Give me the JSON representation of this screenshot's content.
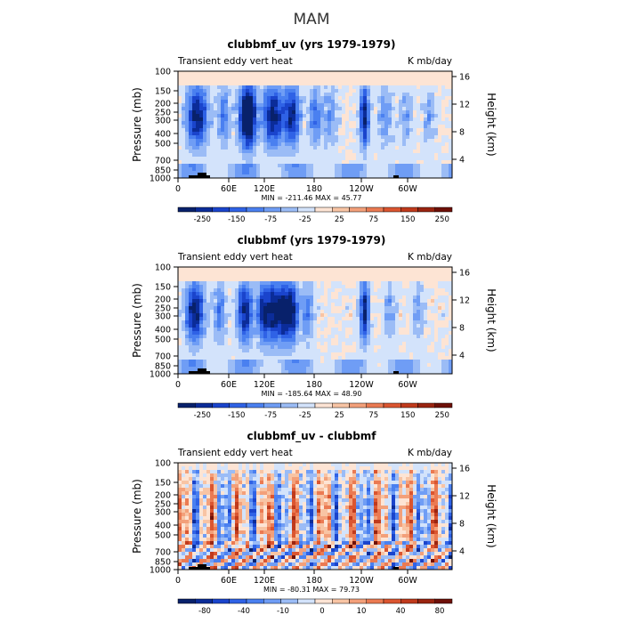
{
  "figure": {
    "title": "MAM"
  },
  "chart_data": [
    {
      "type": "heatmap",
      "title": "clubbmf_uv (yrs 1979-1979)",
      "left_label": "Transient eddy vert heat",
      "right_label": "K mb/day",
      "ylabel": "Pressure (mb)",
      "ylabel_right": "Height (km)",
      "x_ticks": [
        "0",
        "60E",
        "120E",
        "180",
        "120W",
        "60W"
      ],
      "y_ticks": [
        "100",
        "150",
        "200",
        "250",
        "300",
        "400",
        "500",
        "700",
        "850",
        "1000"
      ],
      "y_ticks_right": [
        "4",
        "8",
        "12",
        "16"
      ],
      "stats": "MIN = -211.46   MAX =  45.77",
      "colorbar_labels": [
        "-250",
        "-150",
        "-75",
        "-25",
        "25",
        "75",
        "150",
        "250"
      ],
      "colors": [
        "#08216b",
        "#0b2c99",
        "#1a44cc",
        "#2f62e6",
        "#4a80f0",
        "#6f9df5",
        "#9bbcf6",
        "#d3e3fb",
        "#fde4d4",
        "#f8c4a4",
        "#f3a07a",
        "#eb7a52",
        "#db5530",
        "#c03a1c",
        "#9a2410",
        "#6e1008"
      ],
      "min": -211.46,
      "max": 45.77
    },
    {
      "type": "heatmap",
      "title": "clubbmf (yrs 1979-1979)",
      "left_label": "Transient eddy vert heat",
      "right_label": "K mb/day",
      "ylabel": "Pressure (mb)",
      "ylabel_right": "Height (km)",
      "x_ticks": [
        "0",
        "60E",
        "120E",
        "180",
        "120W",
        "60W"
      ],
      "y_ticks": [
        "100",
        "150",
        "200",
        "250",
        "300",
        "400",
        "500",
        "700",
        "850",
        "1000"
      ],
      "y_ticks_right": [
        "4",
        "8",
        "12",
        "16"
      ],
      "stats": "MIN = -185.64   MAX =  48.90",
      "colorbar_labels": [
        "-250",
        "-150",
        "-75",
        "-25",
        "25",
        "75",
        "150",
        "250"
      ],
      "colors": [
        "#08216b",
        "#0b2c99",
        "#1a44cc",
        "#2f62e6",
        "#4a80f0",
        "#6f9df5",
        "#9bbcf6",
        "#d3e3fb",
        "#fde4d4",
        "#f8c4a4",
        "#f3a07a",
        "#eb7a52",
        "#db5530",
        "#c03a1c",
        "#9a2410",
        "#6e1008"
      ],
      "min": -185.64,
      "max": 48.9
    },
    {
      "type": "heatmap",
      "title": "clubbmf_uv - clubbmf",
      "left_label": "Transient eddy vert heat",
      "right_label": "K mb/day",
      "ylabel": "Pressure (mb)",
      "ylabel_right": "Height (km)",
      "x_ticks": [
        "0",
        "60E",
        "120E",
        "180",
        "120W",
        "60W"
      ],
      "y_ticks": [
        "100",
        "150",
        "200",
        "250",
        "300",
        "400",
        "500",
        "700",
        "850",
        "1000"
      ],
      "y_ticks_right": [
        "4",
        "8",
        "12",
        "16"
      ],
      "stats": "MIN = -80.31   MAX =  79.73",
      "colorbar_labels": [
        "-80",
        "-40",
        "-10",
        "0",
        "10",
        "40",
        "80"
      ],
      "colors": [
        "#08216b",
        "#0b2c99",
        "#1a44cc",
        "#2f62e6",
        "#4a80f0",
        "#6f9df5",
        "#9bbcf6",
        "#d3e3fb",
        "#fde4d4",
        "#f8c4a4",
        "#f3a07a",
        "#eb7a52",
        "#db5530",
        "#c03a1c",
        "#9a2410",
        "#6e1008"
      ],
      "min": -80.31,
      "max": 79.73
    }
  ]
}
